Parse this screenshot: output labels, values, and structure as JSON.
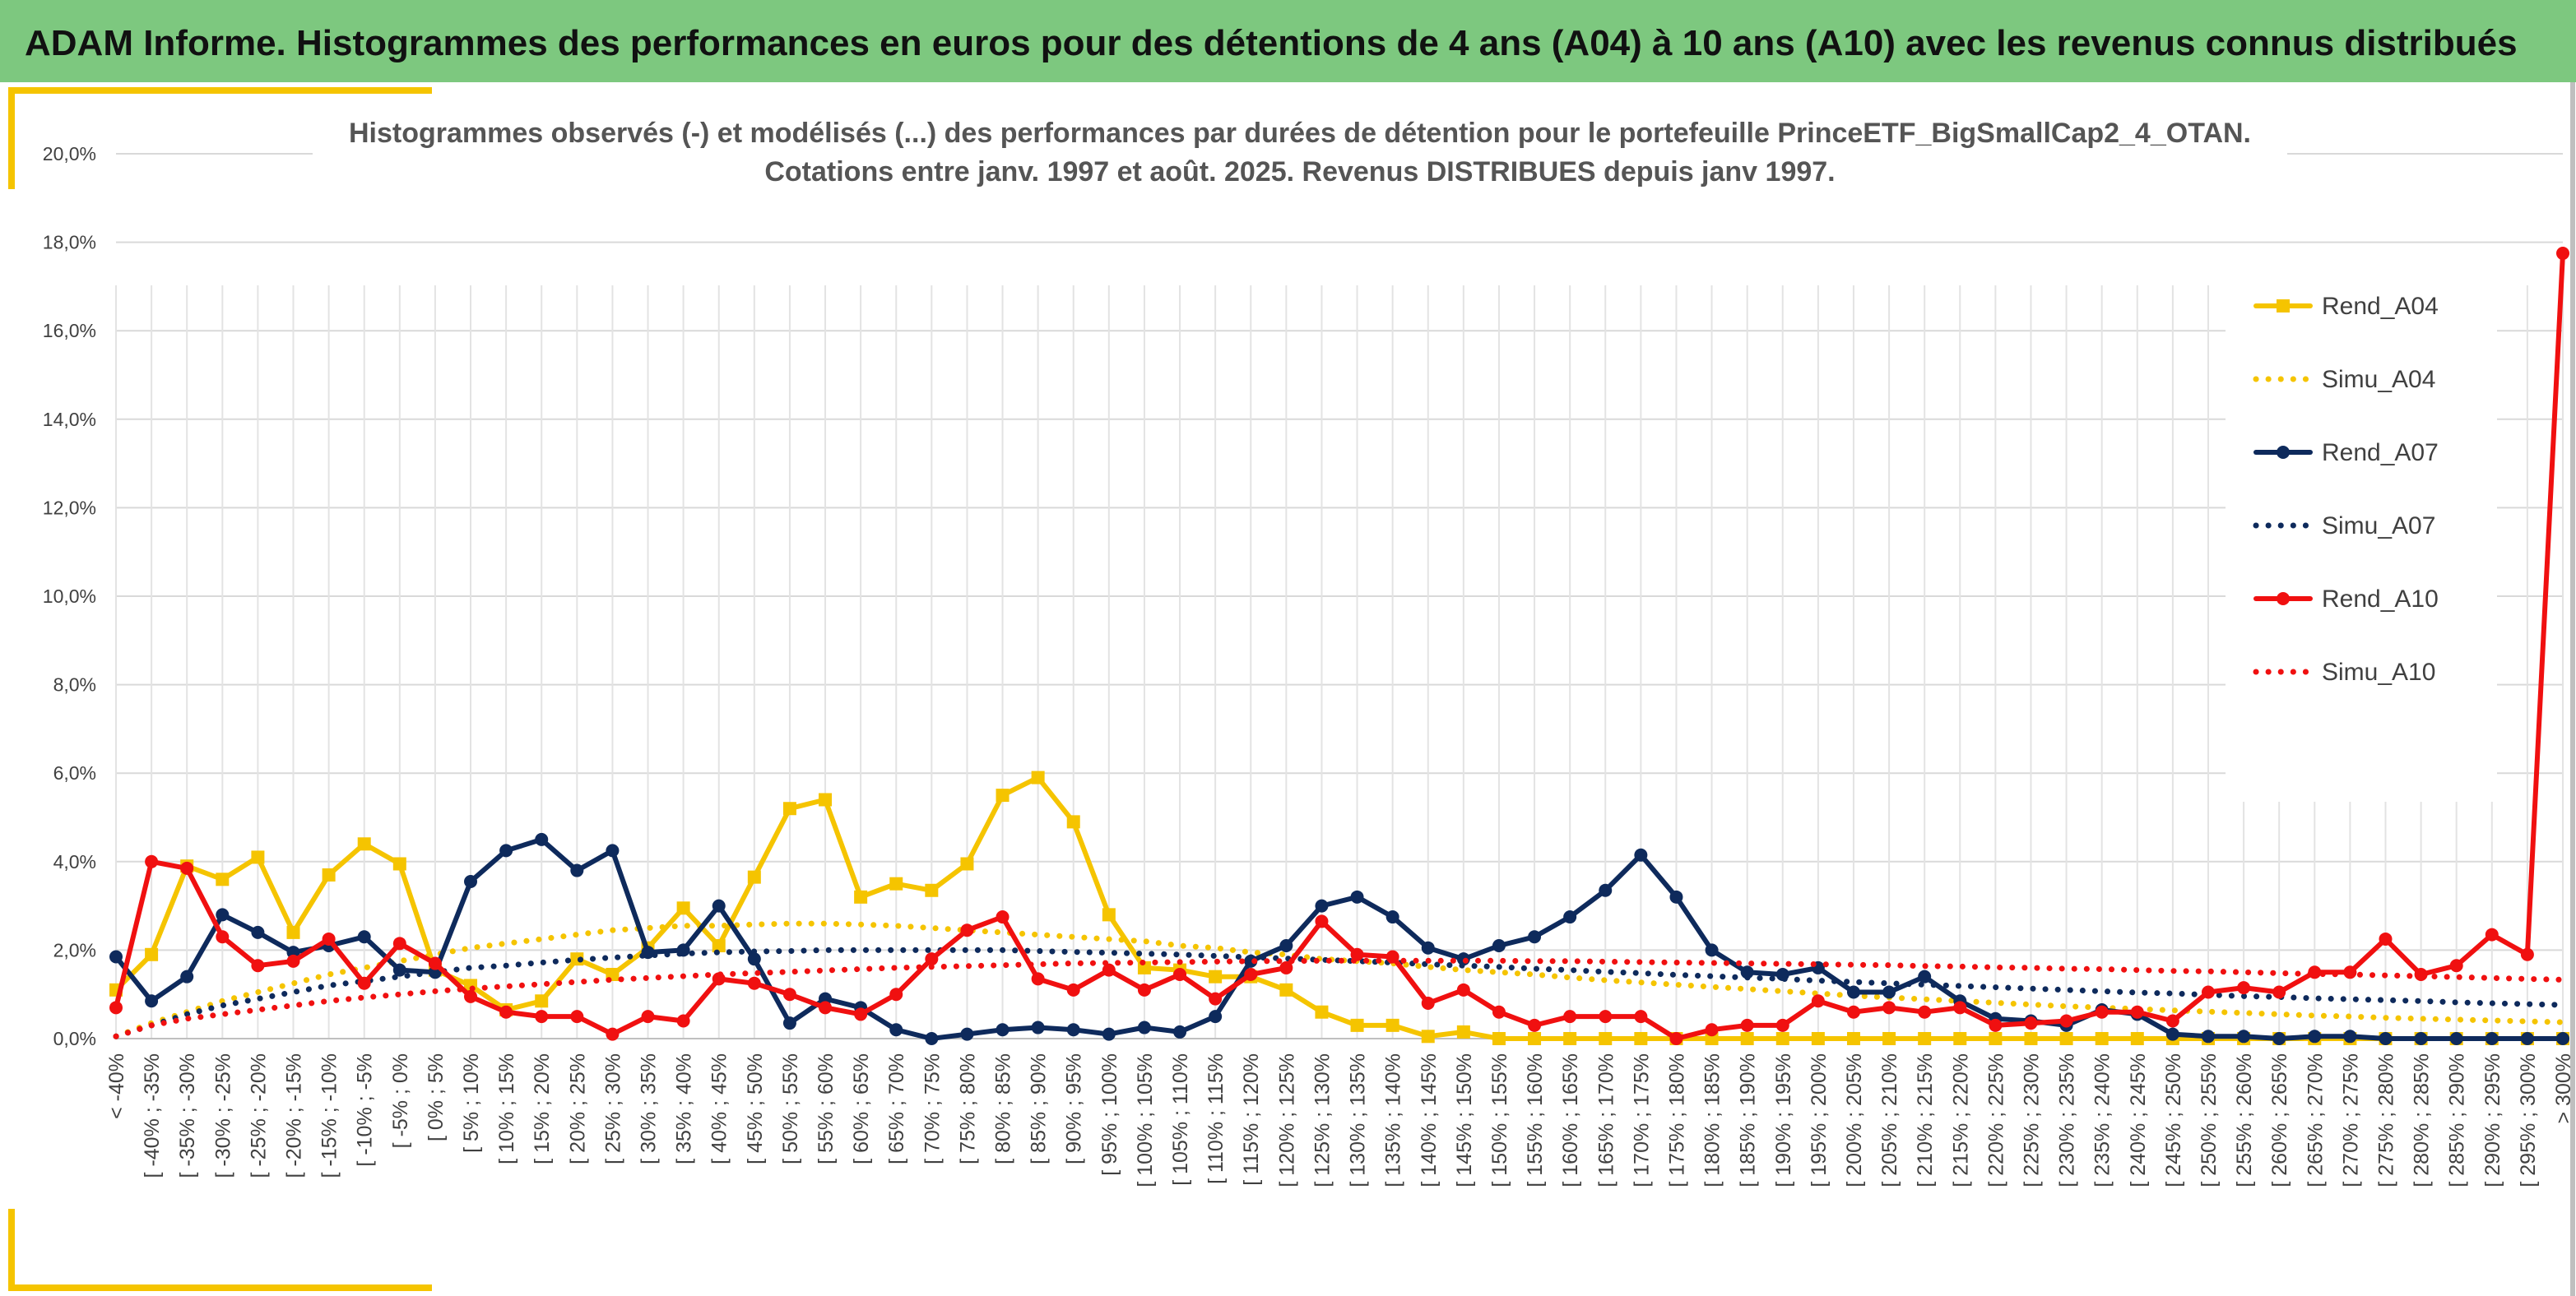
{
  "header": {
    "title": "ADAM Informe. Histogrammes des performances en euros pour des détentions de 4 ans (A04) à 10 ans (A10) avec les revenus connus distribués"
  },
  "colors": {
    "banner": "#7dc87f",
    "accent_frame": "#f5c400",
    "A04": "#f5c400",
    "A07": "#0e2a5c",
    "A10": "#f01010"
  },
  "chart_data": {
    "type": "line",
    "title_lines": [
      "Histogrammes observés (-) et modélisés (...) des performances par durées de détention pour le portefeuille PrinceETF_BigSmallCap2_4_OTAN.",
      "Cotations entre janv. 1997 et août. 2025. Revenus DISTRIBUES depuis janv 1997."
    ],
    "xlabel": "",
    "ylabel": "",
    "ylim": [
      0,
      20
    ],
    "y_ticks": [
      "0,0%",
      "2,0%",
      "4,0%",
      "6,0%",
      "8,0%",
      "10,0%",
      "12,0%",
      "14,0%",
      "16,0%",
      "18,0%",
      "20,0%"
    ],
    "grid": true,
    "legend_position": "right",
    "categories": [
      "< -40%",
      "[ -40% ; -35%",
      "[ -35% ; -30%",
      "[ -30% ; -25%",
      "[ -25% ; -20%",
      "[ -20% ; -15%",
      "[ -15% ; -10%",
      "[ -10% ; -5%",
      "[ -5% ; 0%",
      "[ 0% ; 5%",
      "[ 5% ; 10%",
      "[ 10% ; 15%",
      "[ 15% ; 20%",
      "[ 20% ; 25%",
      "[ 25% ; 30%",
      "[ 30% ; 35%",
      "[ 35% ; 40%",
      "[ 40% ; 45%",
      "[ 45% ; 50%",
      "[ 50% ; 55%",
      "[ 55% ; 60%",
      "[ 60% ; 65%",
      "[ 65% ; 70%",
      "[ 70% ; 75%",
      "[ 75% ; 80%",
      "[ 80% ; 85%",
      "[ 85% ; 90%",
      "[ 90% ; 95%",
      "[ 95% ; 100%",
      "[ 100% ; 105%",
      "[ 105% ; 110%",
      "[ 110% ; 115%",
      "[ 115% ; 120%",
      "[ 120% ; 125%",
      "[ 125% ; 130%",
      "[ 130% ; 135%",
      "[ 135% ; 140%",
      "[ 140% ; 145%",
      "[ 145% ; 150%",
      "[ 150% ; 155%",
      "[ 155% ; 160%",
      "[ 160% ; 165%",
      "[ 165% ; 170%",
      "[ 170% ; 175%",
      "[ 175% ; 180%",
      "[ 180% ; 185%",
      "[ 185% ; 190%",
      "[ 190% ; 195%",
      "[ 195% ; 200%",
      "[ 200% ; 205%",
      "[ 205% ; 210%",
      "[ 210% ; 215%",
      "[ 215% ; 220%",
      "[ 220% ; 225%",
      "[ 225% ; 230%",
      "[ 230% ; 235%",
      "[ 235% ; 240%",
      "[ 240% ; 245%",
      "[ 245% ; 250%",
      "[ 250% ; 255%",
      "[ 255% ; 260%",
      "[ 260% ; 265%",
      "[ 265% ; 270%",
      "[ 270% ; 275%",
      "[ 275% ; 280%",
      "[ 280% ; 285%",
      "[ 285% ; 290%",
      "[ 290% ; 295%",
      "[ 295% ; 300%",
      "> 300%"
    ],
    "series": [
      {
        "name": "Rend_A04",
        "style": "solid",
        "marker": "square",
        "color": "#f5c400",
        "values": [
          1.1,
          1.9,
          3.9,
          3.6,
          4.1,
          2.4,
          3.7,
          4.4,
          3.95,
          1.55,
          1.2,
          0.65,
          0.85,
          1.8,
          1.45,
          2.05,
          2.95,
          2.1,
          3.65,
          5.2,
          5.4,
          3.2,
          3.5,
          3.35,
          3.95,
          5.5,
          5.9,
          4.9,
          2.8,
          1.6,
          1.55,
          1.4,
          1.4,
          1.1,
          0.6,
          0.3,
          0.3,
          0.05,
          0.15,
          0,
          0,
          0,
          0,
          0,
          0,
          0,
          0,
          0,
          0,
          0,
          0,
          0,
          0,
          0,
          0,
          0,
          0,
          0,
          0,
          0,
          0,
          0,
          0,
          0,
          0,
          0,
          0,
          0,
          0,
          0
        ]
      },
      {
        "name": "Simu_A04",
        "style": "dotted",
        "marker": "none",
        "color": "#f5c400",
        "values": [
          0.05,
          0.35,
          0.6,
          0.85,
          1.05,
          1.25,
          1.45,
          1.6,
          1.75,
          1.9,
          2.05,
          2.15,
          2.25,
          2.35,
          2.45,
          2.5,
          2.55,
          2.55,
          2.58,
          2.6,
          2.6,
          2.58,
          2.55,
          2.5,
          2.45,
          2.4,
          2.35,
          2.3,
          2.25,
          2.2,
          2.1,
          2.05,
          1.95,
          1.9,
          1.8,
          1.75,
          1.7,
          1.62,
          1.55,
          1.5,
          1.45,
          1.38,
          1.32,
          1.27,
          1.22,
          1.17,
          1.12,
          1.07,
          1.02,
          0.97,
          0.93,
          0.89,
          0.85,
          0.81,
          0.77,
          0.73,
          0.7,
          0.67,
          0.64,
          0.61,
          0.58,
          0.55,
          0.52,
          0.5,
          0.47,
          0.45,
          0.43,
          0.41,
          0.39,
          0.37
        ]
      },
      {
        "name": "Rend_A07",
        "style": "solid",
        "marker": "circle",
        "color": "#0e2a5c",
        "values": [
          1.85,
          0.85,
          1.4,
          2.8,
          2.4,
          1.95,
          2.1,
          2.3,
          1.55,
          1.5,
          3.55,
          4.25,
          4.5,
          3.8,
          4.25,
          1.95,
          2.0,
          3.0,
          1.8,
          0.35,
          0.9,
          0.7,
          0.2,
          0.0,
          0.1,
          0.2,
          0.25,
          0.2,
          0.1,
          0.25,
          0.15,
          0.5,
          1.75,
          2.1,
          3.0,
          3.2,
          2.75,
          2.05,
          1.8,
          2.1,
          2.3,
          2.75,
          3.35,
          4.15,
          3.2,
          2.0,
          1.5,
          1.45,
          1.6,
          1.05,
          1.05,
          1.4,
          0.85,
          0.45,
          0.4,
          0.3,
          0.65,
          0.55,
          0.1,
          0.05,
          0.05,
          0.0,
          0.05,
          0.05,
          0.0,
          0.0,
          0.0,
          0.0,
          0.0,
          0.0
        ]
      },
      {
        "name": "Simu_A07",
        "style": "dotted",
        "marker": "none",
        "color": "#0e2a5c",
        "values": [
          0.05,
          0.3,
          0.55,
          0.75,
          0.9,
          1.05,
          1.2,
          1.3,
          1.4,
          1.5,
          1.6,
          1.65,
          1.72,
          1.78,
          1.83,
          1.88,
          1.92,
          1.95,
          1.97,
          1.98,
          2.0,
          2.0,
          2.0,
          2.0,
          2.0,
          2.0,
          1.98,
          1.96,
          1.94,
          1.92,
          1.9,
          1.87,
          1.84,
          1.81,
          1.78,
          1.75,
          1.72,
          1.68,
          1.65,
          1.62,
          1.58,
          1.55,
          1.51,
          1.48,
          1.44,
          1.41,
          1.38,
          1.35,
          1.31,
          1.28,
          1.25,
          1.22,
          1.19,
          1.16,
          1.13,
          1.1,
          1.07,
          1.04,
          1.02,
          0.99,
          0.96,
          0.94,
          0.91,
          0.89,
          0.87,
          0.85,
          0.82,
          0.8,
          0.78,
          0.76
        ]
      },
      {
        "name": "Rend_A10",
        "style": "solid",
        "marker": "circle",
        "color": "#f01010",
        "values": [
          0.7,
          4.0,
          3.85,
          2.3,
          1.65,
          1.75,
          2.25,
          1.25,
          2.15,
          1.7,
          0.95,
          0.6,
          0.5,
          0.5,
          0.1,
          0.5,
          0.4,
          1.35,
          1.25,
          1.0,
          0.7,
          0.55,
          1.0,
          1.8,
          2.45,
          2.75,
          1.35,
          1.1,
          1.55,
          1.1,
          1.45,
          0.9,
          1.45,
          1.6,
          2.65,
          1.9,
          1.85,
          0.8,
          1.1,
          0.6,
          0.3,
          0.5,
          0.5,
          0.5,
          0.0,
          0.2,
          0.3,
          0.3,
          0.85,
          0.6,
          0.7,
          0.6,
          0.7,
          0.3,
          0.35,
          0.4,
          0.6,
          0.6,
          0.4,
          1.05,
          1.15,
          1.05,
          1.5,
          1.5,
          2.25,
          1.45,
          1.65,
          2.35,
          1.9,
          17.75
        ]
      },
      {
        "name": "Simu_A10",
        "style": "dotted",
        "marker": "none",
        "color": "#f01010",
        "values": [
          0.05,
          0.3,
          0.45,
          0.55,
          0.65,
          0.75,
          0.85,
          0.93,
          1.0,
          1.07,
          1.13,
          1.18,
          1.23,
          1.28,
          1.33,
          1.37,
          1.41,
          1.45,
          1.48,
          1.51,
          1.54,
          1.57,
          1.6,
          1.62,
          1.64,
          1.66,
          1.68,
          1.7,
          1.71,
          1.72,
          1.73,
          1.74,
          1.75,
          1.75,
          1.76,
          1.76,
          1.76,
          1.76,
          1.76,
          1.76,
          1.75,
          1.75,
          1.74,
          1.73,
          1.72,
          1.71,
          1.7,
          1.69,
          1.68,
          1.67,
          1.66,
          1.64,
          1.63,
          1.61,
          1.6,
          1.58,
          1.57,
          1.55,
          1.53,
          1.52,
          1.5,
          1.48,
          1.46,
          1.45,
          1.43,
          1.41,
          1.39,
          1.37,
          1.35,
          1.33
        ]
      }
    ]
  }
}
